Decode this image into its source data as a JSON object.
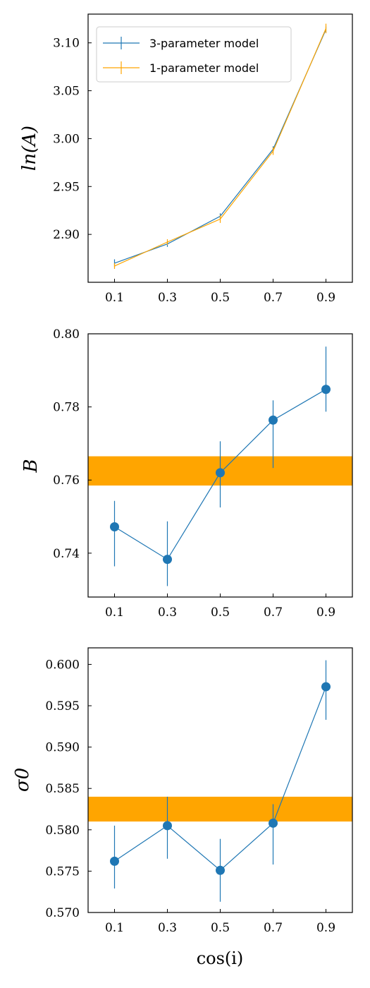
{
  "colors": {
    "blue": "#1f77b4",
    "orange": "#ffa500",
    "band": "#ffa500"
  },
  "xlabel": "cos(i)",
  "chart_data": [
    {
      "type": "line",
      "ylabel": "ln(A)",
      "x": [
        0.1,
        0.3,
        0.5,
        0.7,
        0.9
      ],
      "x_ticks": [
        "0.1",
        "0.3",
        "0.5",
        "0.7",
        "0.9"
      ],
      "xlim": [
        0.0,
        1.0
      ],
      "ylim": [
        2.85,
        3.13
      ],
      "y_ticks": [
        "2.90",
        "2.95",
        "3.00",
        "3.05",
        "3.10"
      ],
      "legend": {
        "placement": "upper-left"
      },
      "series": [
        {
          "name": "3-parameter model",
          "color": "#1f77b4",
          "values": [
            2.87,
            2.89,
            2.919,
            2.989,
            3.114
          ],
          "err": [
            0.004,
            0.003,
            0.003,
            0.003,
            0.003
          ]
        },
        {
          "name": "1-parameter model",
          "color": "#ffa500",
          "values": [
            2.867,
            2.892,
            2.916,
            2.987,
            3.115
          ],
          "err": [
            0.003,
            0.003,
            0.004,
            0.004,
            0.005
          ]
        }
      ]
    },
    {
      "type": "scatter",
      "ylabel": "B",
      "x": [
        0.1,
        0.3,
        0.5,
        0.7,
        0.9
      ],
      "x_ticks": [
        "0.1",
        "0.3",
        "0.5",
        "0.7",
        "0.9"
      ],
      "xlim": [
        0.0,
        1.0
      ],
      "ylim": [
        0.728,
        0.8
      ],
      "y_ticks": [
        "0.74",
        "0.76",
        "0.78",
        "0.80"
      ],
      "band": [
        0.7585,
        0.7665
      ],
      "series": [
        {
          "color": "#1f77b4",
          "values": [
            0.7472,
            0.7383,
            0.762,
            0.7764,
            0.7848
          ],
          "err_low": [
            0.0108,
            0.0073,
            0.0095,
            0.0131,
            0.0061
          ],
          "err_high": [
            0.0071,
            0.0104,
            0.0086,
            0.0054,
            0.0117
          ]
        }
      ]
    },
    {
      "type": "scatter",
      "ylabel": "σ0",
      "x": [
        0.1,
        0.3,
        0.5,
        0.7,
        0.9
      ],
      "x_ticks": [
        "0.1",
        "0.3",
        "0.5",
        "0.7",
        "0.9"
      ],
      "xlim": [
        0.0,
        1.0
      ],
      "ylim": [
        0.57,
        0.602
      ],
      "y_ticks": [
        "0.570",
        "0.575",
        "0.580",
        "0.585",
        "0.590",
        "0.595",
        "0.600"
      ],
      "band": [
        0.581,
        0.584
      ],
      "series": [
        {
          "color": "#1f77b4",
          "values": [
            0.5762,
            0.5805,
            0.5751,
            0.5808,
            0.5973
          ],
          "err_low": [
            0.0033,
            0.004,
            0.0038,
            0.005,
            0.004
          ],
          "err_high": [
            0.0043,
            0.0035,
            0.0038,
            0.0023,
            0.0032
          ]
        }
      ]
    }
  ]
}
